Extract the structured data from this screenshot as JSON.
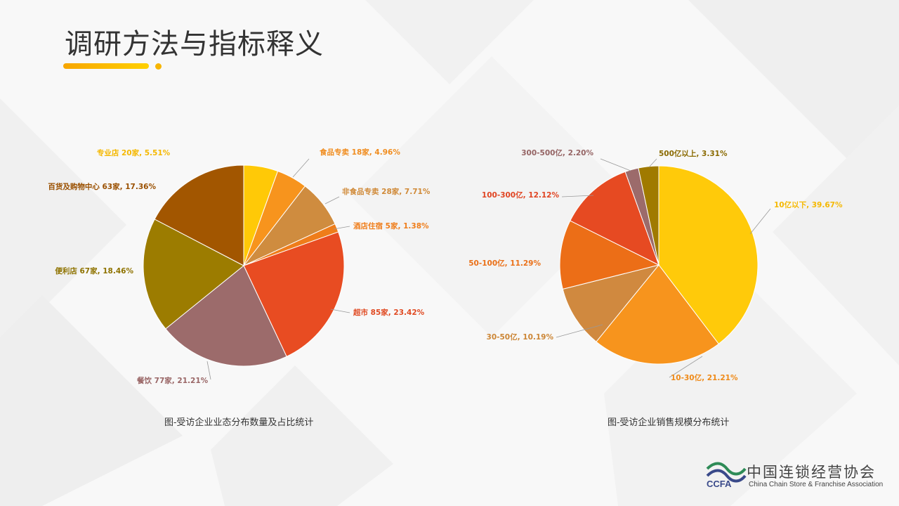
{
  "page": {
    "title": "调研方法与指标释义",
    "caption_left": "图-受访企业业态分布数量及占比统计",
    "caption_right": "图-受访企业销售规模分布统计",
    "logo_cn": "中国连锁经营协会",
    "logo_en": "China Chain Store & Franchise Association",
    "logo_abbr": "CCFA"
  },
  "chart_data": [
    {
      "type": "pie",
      "title": "",
      "slices": [
        {
          "label": "专业店",
          "count": "20家",
          "value": 5.51,
          "color": "#ffc907",
          "text_color": "#f5b800"
        },
        {
          "label": "食品专卖",
          "count": "18家",
          "value": 4.96,
          "color": "#f7941d",
          "text_color": "#f08c1e"
        },
        {
          "label": "非食品专卖",
          "count": "28家",
          "value": 7.71,
          "color": "#cf8c3f",
          "text_color": "#d08a38"
        },
        {
          "label": "酒店住宿",
          "count": "5家",
          "value": 1.38,
          "color": "#ef7d1a",
          "text_color": "#ef7d1a"
        },
        {
          "label": "超市",
          "count": "85家",
          "value": 23.42,
          "color": "#e84c22",
          "text_color": "#e04a22"
        },
        {
          "label": "餐饮",
          "count": "77家",
          "value": 21.21,
          "color": "#9c6b6b",
          "text_color": "#9a6767"
        },
        {
          "label": "便利店",
          "count": "67家",
          "value": 18.46,
          "color": "#9c7c00",
          "text_color": "#8f7300"
        },
        {
          "label": "百货及购物中心",
          "count": "63家",
          "value": 17.36,
          "color": "#a25600",
          "text_color": "#9a5000"
        }
      ]
    },
    {
      "type": "pie",
      "title": "",
      "slices": [
        {
          "label": "10亿以下",
          "value": 39.67,
          "color": "#ffca0a",
          "text_color": "#f5b800"
        },
        {
          "label": "10-30亿",
          "value": 21.21,
          "color": "#f7941d",
          "text_color": "#ef8a18"
        },
        {
          "label": "30-50亿",
          "value": 10.19,
          "color": "#d0893f",
          "text_color": "#cc8636"
        },
        {
          "label": "50-100亿",
          "value": 11.29,
          "color": "#ec6e17",
          "text_color": "#ea7018"
        },
        {
          "label": "100-300亿",
          "value": 12.12,
          "color": "#e64a22",
          "text_color": "#e04422"
        },
        {
          "label": "300-500亿",
          "value": 2.2,
          "color": "#9c6b6b",
          "text_color": "#956464"
        },
        {
          "label": "500亿以上",
          "value": 3.31,
          "color": "#a07a00",
          "text_color": "#8a6a00"
        }
      ]
    }
  ]
}
